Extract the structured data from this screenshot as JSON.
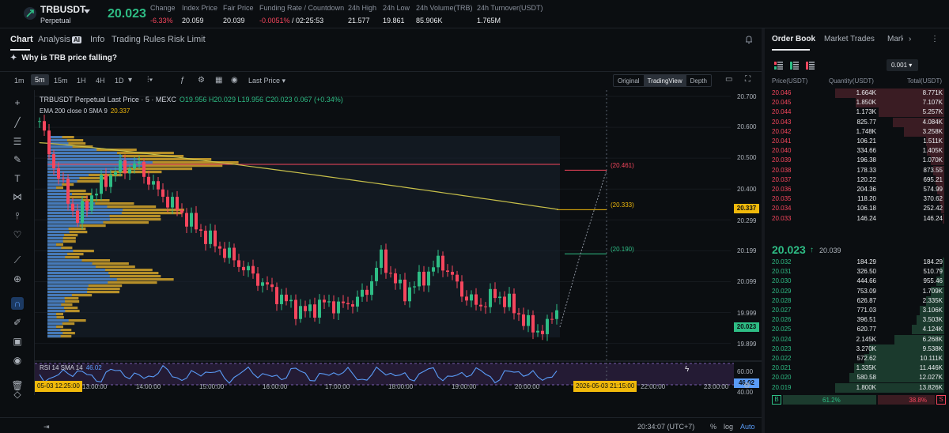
{
  "ticker": {
    "symbol": "TRBUSDT",
    "type": "Perpetual",
    "last_price": "20.023",
    "stats": [
      {
        "label": "Change",
        "value": "-6.33%",
        "tone": "red"
      },
      {
        "label": "Index Price",
        "value": "20.059",
        "tone": ""
      },
      {
        "label": "Fair Price",
        "value": "20.039",
        "tone": ""
      },
      {
        "label": "Funding Rate / Countdown",
        "value": "-0.0051%",
        "value2": "02:25:53",
        "tone": "red"
      },
      {
        "label": "24h High",
        "value": "21.577",
        "tone": ""
      },
      {
        "label": "24h Low",
        "value": "19.861",
        "tone": ""
      },
      {
        "label": "24h Volume(TRB)",
        "value": "85.906K",
        "tone": ""
      },
      {
        "label": "24h Turnover(USDT)",
        "value": "1.765M",
        "tone": ""
      }
    ]
  },
  "tabs": [
    "Chart",
    "Analysis",
    "Info",
    "Trading Rules",
    "Risk Limit"
  ],
  "ai_badge": "AI",
  "why_text": "Why is TRB price falling?",
  "timeframes": [
    "1m",
    "5m",
    "15m",
    "1H",
    "4H",
    "1D"
  ],
  "active_timeframe": "5m",
  "price_type": "Last Price",
  "views": [
    "Original",
    "TradingView",
    "Depth"
  ],
  "active_view": "TradingView",
  "legend": {
    "title": "TRBUSDT Perpetual Last Price · 5 · MEXC",
    "ohlc": "O19.956  H20.029  L19.956  C20.023  0.067 (+0.34%)",
    "ema_label": "EMA 200 close 0 SMA 9",
    "ema_value": "20.337"
  },
  "y_axis": [
    "20.700",
    "20.600",
    "20.500",
    "20.400",
    "20.299",
    "20.199",
    "20.099",
    "19.999",
    "19.899"
  ],
  "y_tags": {
    "ema": "20.337",
    "last": "20.023"
  },
  "levels": [
    {
      "label": "(20.461)",
      "color": "#f6465d"
    },
    {
      "label": "(20.333)",
      "color": "#f0b90b"
    },
    {
      "label": "(20.190)",
      "color": "#2ebd85"
    }
  ],
  "rsi": {
    "label": "RSI 14 SMA 14",
    "value": "46.02",
    "axis": [
      "60.00",
      "46.02",
      "40.00"
    ]
  },
  "x_axis": [
    "13:00:00",
    "14:00:00",
    "15:00:00",
    "16:00:00",
    "17:00:00",
    "18:00:00",
    "19:00:00",
    "20:00:00",
    "22:00:00",
    "23:00:00"
  ],
  "x_tag_left": "05-03   12:25:00",
  "x_tag_right": "2026-05-03   21:15:00",
  "bottom": {
    "clock": "20:34:07 (UTC+7)",
    "percent": "%",
    "log": "log",
    "auto": "Auto"
  },
  "orderbook": {
    "tabs": [
      "Order Book",
      "Market Trades",
      "Mark"
    ],
    "precision": "0.001",
    "headers": {
      "price": "Price(USDT)",
      "qty": "Quantity(USDT)",
      "total": "Total(USDT)"
    },
    "asks": [
      {
        "p": "20.046",
        "q": "1.664K",
        "t": "8.771K",
        "d": 1.0
      },
      {
        "p": "20.045",
        "q": "1.850K",
        "t": "7.107K",
        "d": 0.81
      },
      {
        "p": "20.044",
        "q": "1.173K",
        "t": "5.257K",
        "d": 0.6
      },
      {
        "p": "20.043",
        "q": "825.77",
        "t": "4.084K",
        "d": 0.47
      },
      {
        "p": "20.042",
        "q": "1.748K",
        "t": "3.258K",
        "d": 0.37
      },
      {
        "p": "20.041",
        "q": "106.21",
        "t": "1.511K",
        "d": 0.17
      },
      {
        "p": "20.040",
        "q": "334.66",
        "t": "1.405K",
        "d": 0.16
      },
      {
        "p": "20.039",
        "q": "196.38",
        "t": "1.070K",
        "d": 0.12
      },
      {
        "p": "20.038",
        "q": "178.33",
        "t": "873.55",
        "d": 0.1
      },
      {
        "p": "20.037",
        "q": "120.22",
        "t": "695.21",
        "d": 0.08
      },
      {
        "p": "20.036",
        "q": "204.36",
        "t": "574.99",
        "d": 0.065
      },
      {
        "p": "20.035",
        "q": "118.20",
        "t": "370.62",
        "d": 0.042
      },
      {
        "p": "20.034",
        "q": "106.18",
        "t": "252.42",
        "d": 0.029
      },
      {
        "p": "20.033",
        "q": "146.24",
        "t": "146.24",
        "d": 0.017
      }
    ],
    "mid_price": "20.023",
    "mid_ref": "20.039",
    "bids": [
      {
        "p": "20.032",
        "q": "184.29",
        "t": "184.29",
        "d": 0.013
      },
      {
        "p": "20.031",
        "q": "326.50",
        "t": "510.79",
        "d": 0.037
      },
      {
        "p": "20.030",
        "q": "444.66",
        "t": "955.46",
        "d": 0.069
      },
      {
        "p": "20.029",
        "q": "753.09",
        "t": "1.709K",
        "d": 0.124
      },
      {
        "p": "20.028",
        "q": "626.87",
        "t": "2.335K",
        "d": 0.169
      },
      {
        "p": "20.027",
        "q": "771.03",
        "t": "3.106K",
        "d": 0.225
      },
      {
        "p": "20.026",
        "q": "396.51",
        "t": "3.503K",
        "d": 0.253
      },
      {
        "p": "20.025",
        "q": "620.77",
        "t": "4.124K",
        "d": 0.298
      },
      {
        "p": "20.024",
        "q": "2.145K",
        "t": "6.268K",
        "d": 0.453
      },
      {
        "p": "20.023",
        "q": "3.270K",
        "t": "9.538K",
        "d": 0.69
      },
      {
        "p": "20.022",
        "q": "572.62",
        "t": "10.111K",
        "d": 0.731
      },
      {
        "p": "20.021",
        "q": "1.335K",
        "t": "11.446K",
        "d": 0.828
      },
      {
        "p": "20.020",
        "q": "580.58",
        "t": "12.027K",
        "d": 0.87
      },
      {
        "p": "20.019",
        "q": "1.800K",
        "t": "13.826K",
        "d": 1.0
      }
    ],
    "buy_letter": "B",
    "sell_letter": "S",
    "buy_pct": "61.2%",
    "sell_pct": "38.8%",
    "buy_fraction": 0.612
  },
  "colors": {
    "up": "#2ebd85",
    "down": "#f6465d",
    "ema": "#c8c04a",
    "accent": "#f0b90b",
    "rsi": "#5a9cf8"
  }
}
